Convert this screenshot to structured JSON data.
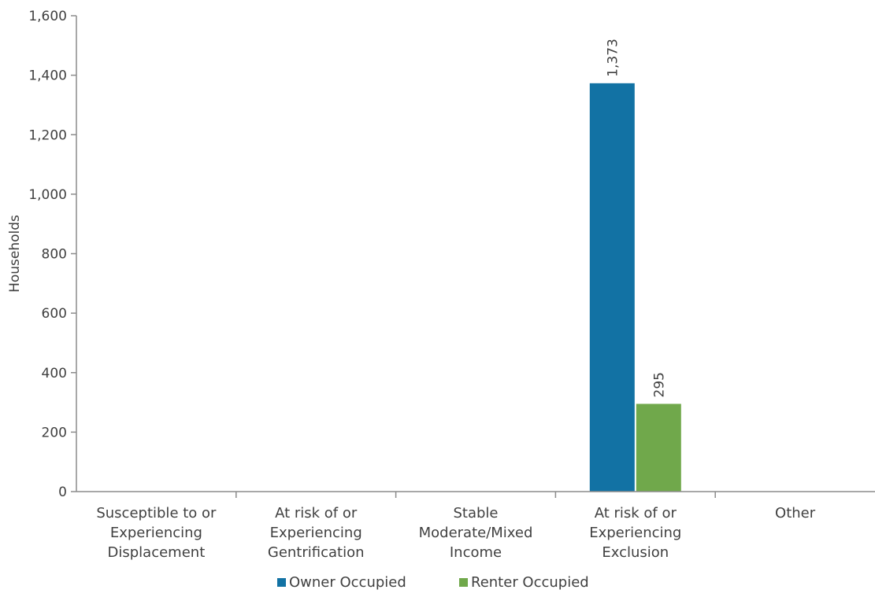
{
  "chart_data": {
    "type": "bar",
    "title": "",
    "xlabel": "",
    "ylabel": "Households",
    "ylim": [
      0,
      1600
    ],
    "yticks": [
      "0",
      "200",
      "400",
      "600",
      "800",
      "1,000",
      "1,200",
      "1,400",
      "1,600"
    ],
    "ytick_values": [
      0,
      200,
      400,
      600,
      800,
      1000,
      1200,
      1400,
      1600
    ],
    "categories": [
      [
        "Susceptible to or",
        "Experiencing",
        "Displacement"
      ],
      [
        "At risk of or",
        "Experiencing",
        "Gentrification"
      ],
      [
        "Stable",
        "Moderate/Mixed",
        "Income"
      ],
      [
        "At risk of or",
        "Experiencing",
        "Exclusion"
      ],
      [
        "Other"
      ]
    ],
    "series": [
      {
        "name": "Owner Occupied",
        "color": "#1272A4",
        "values": [
          0,
          0,
          0,
          1373,
          0
        ],
        "labels": [
          "",
          "",
          "",
          "1,373",
          ""
        ]
      },
      {
        "name": "Renter Occupied",
        "color": "#70A84B",
        "values": [
          0,
          0,
          0,
          295,
          0
        ],
        "labels": [
          "",
          "",
          "",
          "295",
          ""
        ]
      }
    ],
    "grid": false,
    "legend_position": "bottom"
  }
}
